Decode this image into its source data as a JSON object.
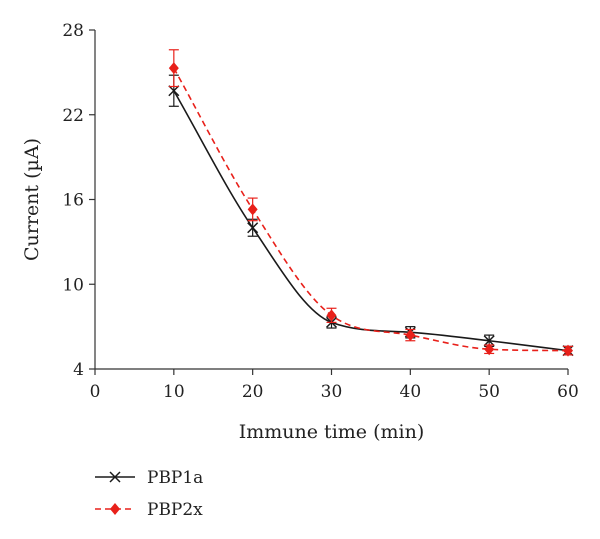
{
  "chart_data": {
    "type": "line",
    "title": "",
    "xlabel": "Immune time (min)",
    "ylabel": "Current (µA)",
    "xlim": [
      0,
      60
    ],
    "ylim": [
      4,
      28
    ],
    "xticks": [
      0,
      10,
      20,
      30,
      40,
      50,
      60
    ],
    "yticks": [
      4,
      10,
      16,
      22,
      28
    ],
    "grid": false,
    "legend_position": "bottom-left",
    "series": [
      {
        "name": "PBP1a",
        "color": "#1a1a1a",
        "marker": "cross",
        "line_style": "solid",
        "x": [
          10,
          20,
          30,
          40,
          50,
          60
        ],
        "y": [
          23.7,
          14.0,
          7.3,
          6.6,
          6.0,
          5.3
        ],
        "error": [
          1.1,
          0.6,
          0.4,
          0.4,
          0.4,
          0.3
        ]
      },
      {
        "name": "PBP2x",
        "color": "#e8201a",
        "marker": "diamond",
        "line_style": "dashed",
        "x": [
          10,
          20,
          30,
          40,
          50,
          60
        ],
        "y": [
          25.3,
          15.3,
          7.8,
          6.4,
          5.4,
          5.3
        ],
        "error": [
          1.3,
          0.8,
          0.5,
          0.4,
          0.3,
          0.3
        ]
      }
    ]
  }
}
